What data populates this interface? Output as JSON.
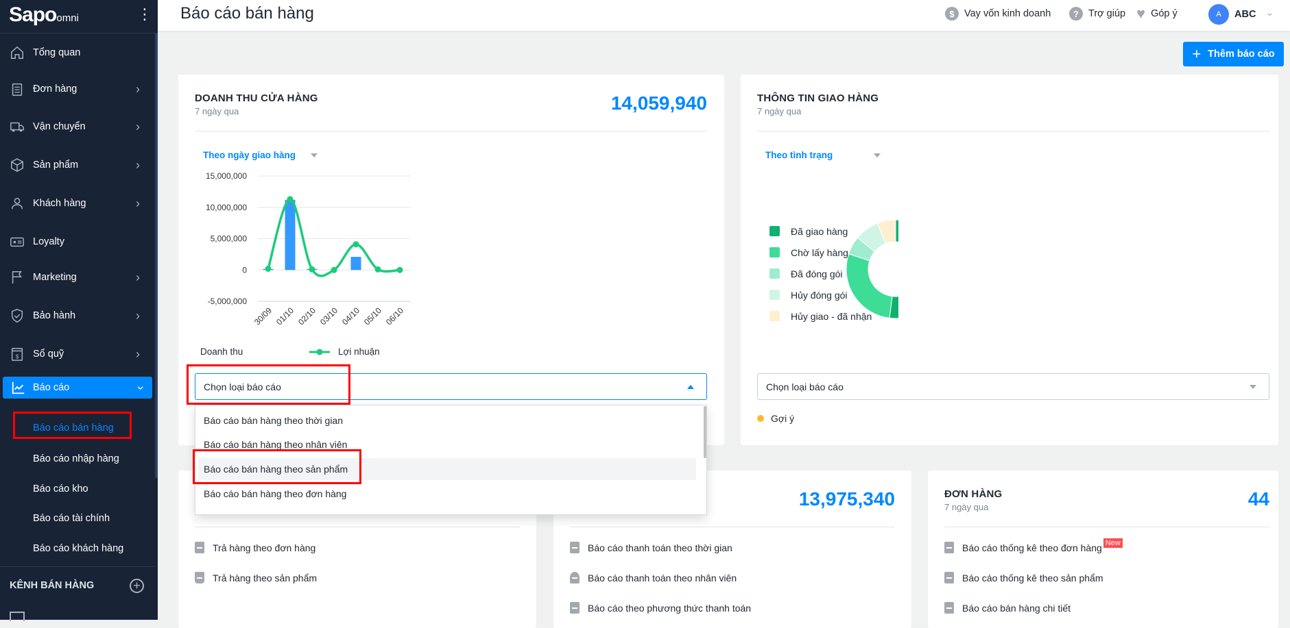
{
  "brand": {
    "logo": "Sapo",
    "logo_suffix": "omni"
  },
  "header": {
    "title": "Báo cáo bán hàng",
    "loan": "Vay vốn kinh doanh",
    "help": "Trợ giúp",
    "feedback": "Góp ý",
    "avatar_initial": "A",
    "user": "ABC"
  },
  "sidebar": {
    "items": [
      {
        "label": "Tổng quan",
        "icon": "home-icon"
      },
      {
        "label": "Đơn hàng",
        "icon": "clipboard-icon"
      },
      {
        "label": "Vận chuyển",
        "icon": "truck-icon"
      },
      {
        "label": "Sản phẩm",
        "icon": "box-icon"
      },
      {
        "label": "Khách hàng",
        "icon": "user-icon"
      },
      {
        "label": "Loyalty",
        "icon": "card-icon"
      },
      {
        "label": "Marketing",
        "icon": "flag-icon"
      },
      {
        "label": "Bảo hành",
        "icon": "shield-icon"
      },
      {
        "label": "Sổ quỹ",
        "icon": "cashbook-icon"
      },
      {
        "label": "Báo cáo",
        "icon": "chart-icon"
      }
    ],
    "subitems": [
      "Báo cáo bán hàng",
      "Báo cáo nhập hàng",
      "Báo cáo kho",
      "Báo cáo tài chính",
      "Báo cáo khách hàng"
    ],
    "channels_title": "KÊNH BÁN HÀNG"
  },
  "toolbar": {
    "add_report": "Thêm báo cáo"
  },
  "revenue_card": {
    "title": "DOANH THU CỬA HÀNG",
    "subtitle": "7 ngày qua",
    "total": "14,059,940",
    "filter": "Theo ngày giao hàng",
    "select_placeholder": "Chọn loại báo cáo",
    "options": [
      "Báo cáo bán hàng theo thời gian",
      "Báo cáo bán hàng theo nhân viên",
      "Báo cáo bán hàng theo sản phẩm",
      "Báo cáo bán hàng theo đơn hàng"
    ]
  },
  "delivery_card": {
    "title": "THÔNG TIN GIAO HÀNG",
    "subtitle": "7 ngày qua",
    "filter": "Theo tình trạng",
    "select_placeholder": "Chọn loại báo cáo",
    "hint": "Gợi ý"
  },
  "returns_card": {
    "items": [
      "Trả hàng theo đơn hàng",
      "Trả hàng theo sản phẩm"
    ]
  },
  "payment_card": {
    "total": "13,975,340",
    "items": [
      "Báo cáo thanh toán theo thời gian",
      "Báo cáo thanh toán theo nhân viên",
      "Báo cáo theo phương thức thanh toán"
    ]
  },
  "orders_card": {
    "title": "ĐƠN HÀNG",
    "subtitle": "7 ngày qua",
    "total": "44",
    "items": [
      "Báo cáo thống kê theo đơn hàng",
      "Báo cáo thống kê theo sản phẩm",
      "Báo cáo bán hàng chi tiết"
    ],
    "new_badge": "New"
  },
  "chart_data": [
    {
      "type": "bar+line",
      "categories": [
        "30/09",
        "01/10",
        "02/10",
        "03/10",
        "04/10",
        "05/10",
        "06/10"
      ],
      "ylim": [
        -5000000,
        15000000
      ],
      "yticks": [
        "15,000,000",
        "10,000,000",
        "5,000,000",
        "0",
        "-5,000,000"
      ],
      "ytick_values": [
        15000000,
        10000000,
        5000000,
        0,
        -5000000
      ],
      "grid": true,
      "legend": "bottom",
      "series": [
        {
          "name": "Doanh thu",
          "type": "bar",
          "color": "#3399ff",
          "values": [
            100000,
            11200000,
            100000,
            0,
            2100000,
            0,
            0
          ]
        },
        {
          "name": "Lợi nhuận",
          "type": "line",
          "color": "#1ccb7d",
          "values": [
            200000,
            11300000,
            100000,
            0,
            4100000,
            100000,
            0
          ]
        }
      ]
    },
    {
      "type": "pie",
      "donut": true,
      "legend": "left",
      "labels": [
        "Đã giao hàng",
        "Chờ lấy hàng",
        "Đã đóng gói",
        "Hủy đóng gói",
        "Hủy giao - đã nhận"
      ],
      "colors": [
        "#10b06f",
        "#3ddc97",
        "#a0ecd0",
        "#d0f5e6",
        "#ffefd0"
      ],
      "values": [
        52,
        28,
        6,
        8,
        6
      ]
    }
  ]
}
